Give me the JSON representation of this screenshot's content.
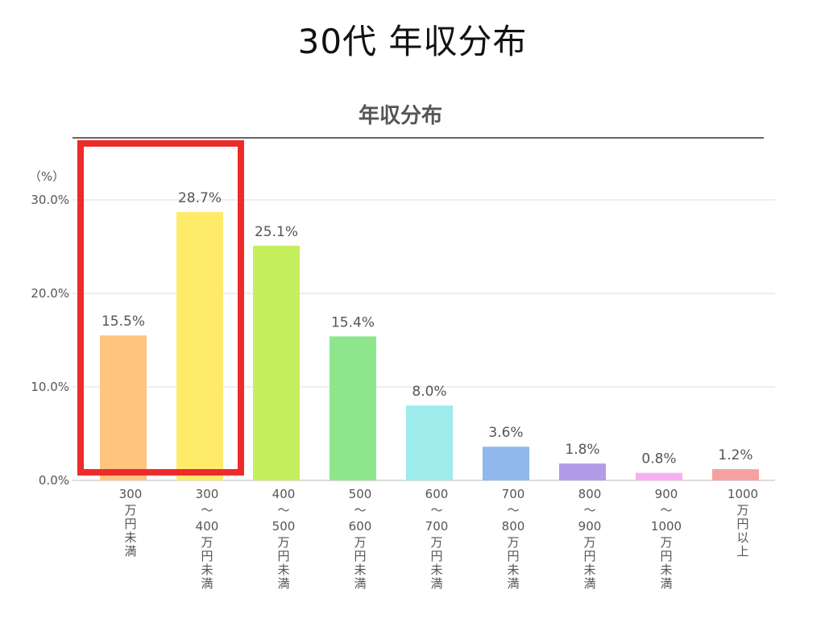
{
  "page": {
    "title": "30代 年収分布"
  },
  "chart_data": {
    "type": "bar",
    "title": "年収分布",
    "ylabel": "（%）",
    "ylim": [
      0,
      30
    ],
    "yticks": [
      "0.0%",
      "10.0%",
      "20.0%",
      "30.0%"
    ],
    "grid": true,
    "legend": "none",
    "categories": [
      "300\n万円未満",
      "300\n～\n400\n万円未満",
      "400\n～\n500\n万円未満",
      "500\n～\n600\n万円未満",
      "600\n～\n700\n万円未満",
      "700\n～\n800\n万円未満",
      "800\n～\n900\n万円未満",
      "900\n～\n1000\n万円未満",
      "1000\n万円以上"
    ],
    "values": [
      15.5,
      28.7,
      25.1,
      15.4,
      8.0,
      3.6,
      1.8,
      0.8,
      1.2
    ],
    "data_labels": [
      "15.5%",
      "28.7%",
      "25.1%",
      "15.4%",
      "8.0%",
      "3.6%",
      "1.8%",
      "0.8%",
      "1.2%"
    ],
    "colors": [
      "#FFC47E",
      "#FFEB6A",
      "#C6EF5E",
      "#8EE68C",
      "#9DEBEB",
      "#8FB8EC",
      "#B49BE8",
      "#F6B0F2",
      "#F7A0A0"
    ],
    "highlight": {
      "categories": [
        0,
        1
      ],
      "color": "#EE2B2B"
    }
  }
}
